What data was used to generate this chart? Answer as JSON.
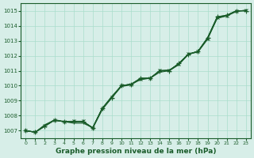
{
  "x": [
    0,
    1,
    2,
    3,
    4,
    5,
    6,
    7,
    8,
    9,
    10,
    11,
    12,
    13,
    14,
    15,
    16,
    17,
    18,
    19,
    20,
    21,
    22,
    23
  ],
  "line1": [
    1007.0,
    1006.9,
    1007.3,
    1007.7,
    1007.6,
    1007.6,
    1007.6,
    1007.2,
    1008.5,
    1009.2,
    1010.0,
    1010.1,
    1010.5,
    1010.5,
    1011.0,
    1011.0,
    1011.5,
    1012.1,
    1012.3,
    1013.2,
    1014.6,
    1014.7,
    1015.0,
    1015.0
  ],
  "line2": [
    1007.0,
    1006.9,
    1007.3,
    1007.7,
    1007.6,
    1007.5,
    1007.5,
    1007.2,
    1008.5,
    1009.3,
    1010.0,
    1010.1,
    1010.4,
    1010.5,
    1010.9,
    1011.0,
    1011.4,
    1012.1,
    1012.3,
    1013.2,
    1014.5,
    1014.7,
    1015.0,
    1015.0
  ],
  "line3": [
    1007.0,
    1006.9,
    1007.4,
    1007.7,
    1007.6,
    1007.6,
    1007.6,
    1007.15,
    1008.4,
    1009.2,
    1009.95,
    1010.05,
    1010.45,
    1010.5,
    1011.0,
    1011.05,
    1011.45,
    1012.1,
    1012.25,
    1013.1,
    1014.5,
    1014.65,
    1014.95,
    1015.05
  ],
  "line4": [
    1007.0,
    1006.9,
    1007.3,
    1007.7,
    1007.6,
    1007.6,
    1007.6,
    1007.2,
    1008.5,
    1009.2,
    1010.0,
    1010.1,
    1010.5,
    1010.5,
    1011.0,
    1011.0,
    1011.5,
    1012.1,
    1012.3,
    1013.2,
    1014.6,
    1014.7,
    1015.0,
    1015.0
  ],
  "line5": [
    1007.0,
    1006.9,
    1007.35,
    1007.73,
    1007.62,
    1007.63,
    1007.63,
    1007.18,
    1008.48,
    1009.25,
    1010.02,
    1010.09,
    1010.47,
    1010.51,
    1011.01,
    1011.03,
    1011.47,
    1012.13,
    1012.28,
    1013.15,
    1014.55,
    1014.68,
    1014.98,
    1015.02
  ],
  "bg_color": "#d7eee8",
  "line_color": "#1a5c2a",
  "grid_color": "#aaddcc",
  "xlabel": "Graphe pression niveau de la mer (hPa)",
  "ylim": [
    1006.5,
    1015.5
  ],
  "xlim": [
    -0.5,
    23.5
  ],
  "yticks": [
    1007,
    1008,
    1009,
    1010,
    1011,
    1012,
    1013,
    1014,
    1015
  ],
  "xticks": [
    0,
    1,
    2,
    3,
    4,
    5,
    6,
    7,
    8,
    9,
    10,
    11,
    12,
    13,
    14,
    15,
    16,
    17,
    18,
    19,
    20,
    21,
    22,
    23
  ]
}
